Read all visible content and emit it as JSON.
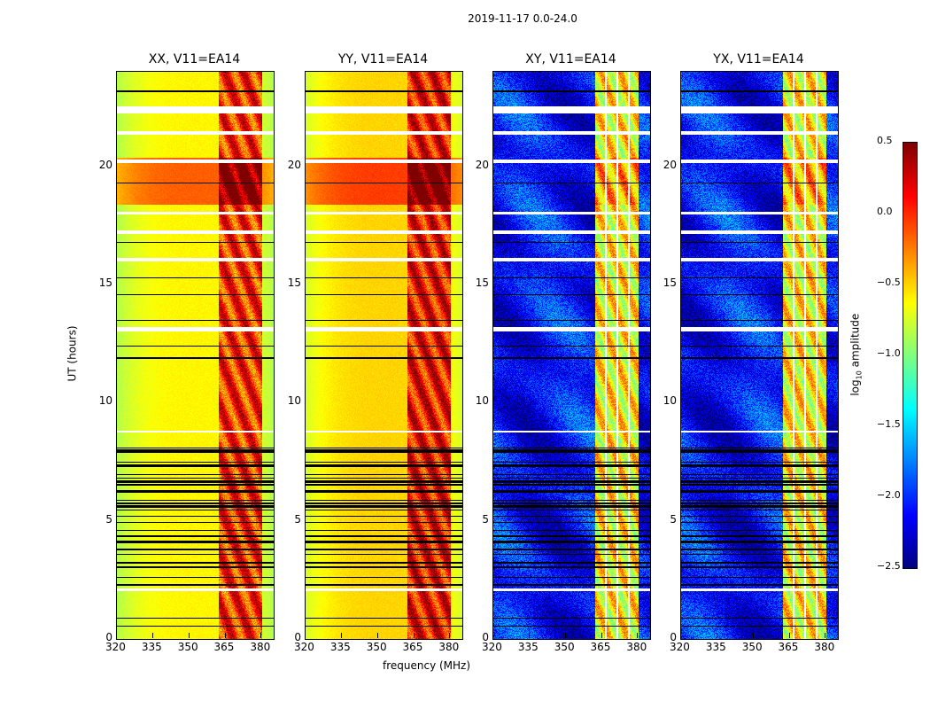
{
  "suptitle": "2019-11-17 0.0-24.0",
  "chart_data": {
    "type": "heatmap",
    "xlabel": "frequency (MHz)",
    "ylabel": "UT (hours)",
    "xlim": [
      320,
      385
    ],
    "ylim": [
      0,
      24
    ],
    "xticks": [
      "320",
      "335",
      "350",
      "365",
      "380"
    ],
    "yticks": [
      "0",
      "5",
      "10",
      "15",
      "20"
    ],
    "panels": [
      {
        "title": "XX, V11=EA14",
        "base_level": -0.6,
        "rfi_level": 0.0
      },
      {
        "title": "YY, V11=EA14",
        "base_level": -0.5,
        "rfi_level": 0.1
      },
      {
        "title": "XY, V11=EA14",
        "base_level": -2.1,
        "rfi_level": -0.6
      },
      {
        "title": "YX, V11=EA14",
        "base_level": -2.1,
        "rfi_level": -0.6
      }
    ],
    "rfi_band_mhz": [
      362,
      380
    ],
    "flagged_hours": [
      [
        22.25,
        22.55
      ],
      [
        21.35,
        21.5
      ],
      [
        20.15,
        20.3
      ],
      [
        18.0,
        18.1
      ],
      [
        17.15,
        17.3
      ],
      [
        16.0,
        16.15
      ],
      [
        13.05,
        13.2
      ],
      [
        8.75,
        8.85
      ],
      [
        2.05,
        2.15
      ]
    ],
    "colorbar": {
      "label": "log10 amplitude",
      "label_main": "log",
      "label_sub": "10",
      "label_rest": " amplitude",
      "range": [
        -2.5,
        0.5
      ],
      "ticks": [
        "0.5",
        "0.0",
        "−0.5",
        "−1.0",
        "−1.5",
        "−2.0",
        "−2.5"
      ],
      "colormap": "jet"
    }
  }
}
